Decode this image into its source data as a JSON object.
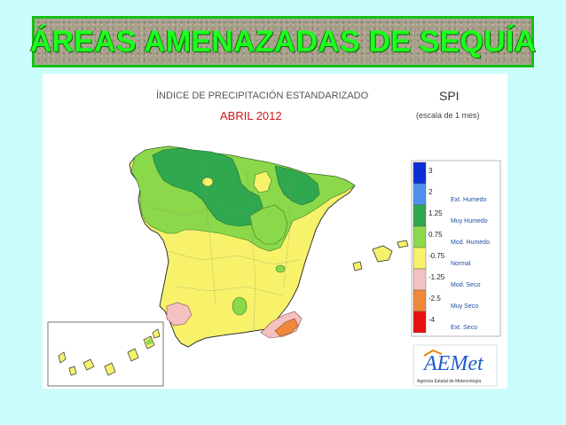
{
  "banner": {
    "title": "ÁREAS AMENAZADAS DE SEQUÍA"
  },
  "map": {
    "title": "ÍNDICE DE PRECIPITACIÓN ESTANDARIZADO",
    "period": "ABRIL 2012",
    "index_code": "SPI",
    "scale_note": "(escala de 1 mes)"
  },
  "legend": {
    "ticks": [
      "3",
      "2",
      "1.25",
      "0.75",
      "-0.75",
      "-1.25",
      "-2.5",
      "-4"
    ],
    "classes": [
      {
        "label": "",
        "color": "#0a2fd6"
      },
      {
        "label": "Ext. Humedo",
        "color": "#4f8ff0"
      },
      {
        "label": "Muy Humedo",
        "color": "#2fa84f"
      },
      {
        "label": "Mod. Humedo",
        "color": "#8bd84a"
      },
      {
        "label": "Normal",
        "color": "#f7f26a"
      },
      {
        "label": "Mod. Seco",
        "color": "#f4c0c0"
      },
      {
        "label": "Muy Seco",
        "color": "#f0883a"
      },
      {
        "label": "Ext. Seco",
        "color": "#e81010"
      }
    ]
  },
  "logo": {
    "name": "AEMet",
    "tagline": "Agencia Estatal de Meteorología"
  },
  "colors": {
    "background": "#ccfdfd",
    "banner_text": "#1dff1d",
    "banner_border": "#16c016",
    "normal_fill": "#f7f26a",
    "moderately_humid_fill": "#8bd84a",
    "very_humid_fill": "#2fa84f",
    "moderately_dry_fill": "#f4c0c0",
    "very_dry_fill": "#f0883a",
    "title_color": "#5a5a5a",
    "period_color": "#d01818"
  }
}
